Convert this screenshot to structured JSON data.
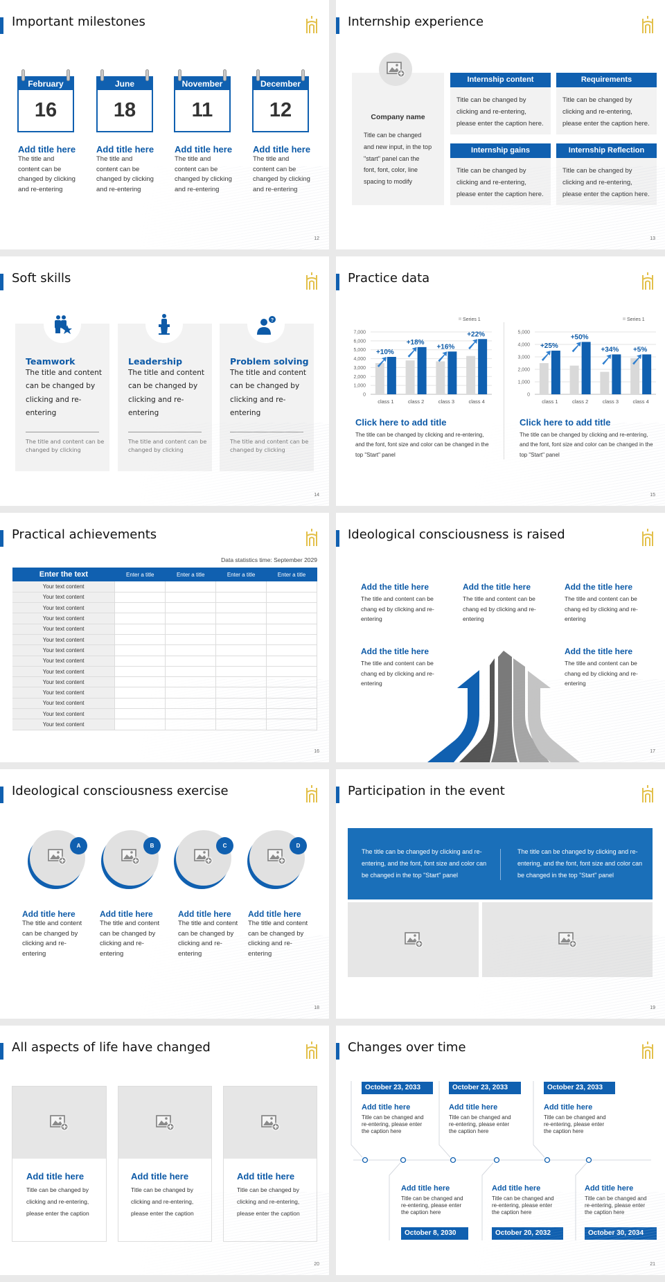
{
  "colors": {
    "accent": "#1060b0",
    "title_blue": "#0d5aa7",
    "panel_gray": "#f2f2f2",
    "logo_gold": "#e3c04a"
  },
  "slides": [
    {
      "page": "12",
      "title": "Important milestones",
      "calendars": [
        {
          "month": "February",
          "day": "16",
          "title": "Add title here",
          "body": "The title and content can be changed by clicking and re-entering"
        },
        {
          "month": "June",
          "day": "18",
          "title": "Add title here",
          "body": "The title and content can be changed by clicking and re-entering"
        },
        {
          "month": "November",
          "day": "11",
          "title": "Add title here",
          "body": "The title and content can be changed by clicking and re-entering"
        },
        {
          "month": "December",
          "day": "12",
          "title": "Add title here",
          "body": "The title and content can be changed by clicking and re-entering"
        }
      ]
    },
    {
      "page": "13",
      "title": "Internship experience",
      "company": "Company name",
      "company_body": "Title can be changed and new input, in the top \"start\" panel can the font, font, color, line spacing to modify",
      "boxes": [
        {
          "header": "Internship content",
          "body": "Title can be changed by clicking and re-entering, please enter the caption here."
        },
        {
          "header": "Requirements",
          "body": "Title can be changed by clicking and re-entering, please enter the caption here."
        },
        {
          "header": "Internship gains",
          "body": "Title can be changed by clicking and re-entering, please enter the caption here."
        },
        {
          "header": "Internship Reflection",
          "body": "Title can be changed by clicking and re-entering, please enter the caption here."
        }
      ]
    },
    {
      "page": "14",
      "title": "Soft skills",
      "cards": [
        {
          "icon": "team-star-icon",
          "title": "Teamwork",
          "body": "The title and content can be changed by clicking and re-entering",
          "note": "The title and content can be changed by clicking"
        },
        {
          "icon": "speaker-podium-icon",
          "title": "Leadership",
          "body": "The title and content can be changed by clicking and re-entering",
          "note": "The title and content can be changed by clicking"
        },
        {
          "icon": "user-question-icon",
          "title": "Problem solving",
          "body": "The title and content can be changed by clicking and re-entering",
          "note": "The title and content can be changed by clicking"
        }
      ]
    },
    {
      "page": "15",
      "title": "Practice data",
      "captions": [
        {
          "title": "Click here to add title",
          "body": "The title can be changed by clicking and re-entering, and the font, font size and color can be changed in the top \"Start\" panel"
        },
        {
          "title": "Click here to add title",
          "body": "The title can be changed by clicking and re-entering, and the font, font size and color can be changed in the top \"Start\" panel"
        }
      ]
    },
    {
      "page": "16",
      "title": "Practical achievements",
      "note": "Data statistics time: September 2029",
      "table": {
        "headers": [
          "Enter the text",
          "Enter a title",
          "Enter a title",
          "Enter a title",
          "Enter a title"
        ],
        "rows": [
          "Your text content",
          "Your text content",
          "Your text content",
          "Your text content",
          "Your text content",
          "Your text content",
          "Your text content",
          "Your text content",
          "Your text content",
          "Your text content",
          "Your text content",
          "Your text content",
          "Your text content",
          "Your text content"
        ]
      }
    },
    {
      "page": "17",
      "title": "Ideological consciousness is raised",
      "items": [
        {
          "title": "Add the title here",
          "body": "The title and content can be chang ed by clicking and re-entering"
        },
        {
          "title": "Add the title here",
          "body": "The title and content can be chang ed by clicking and re-entering"
        },
        {
          "title": "Add the title here",
          "body": "The title and content can be chang ed by clicking and re-entering"
        },
        {
          "title": "Add the title here",
          "body": "The title and content can be chang ed by clicking and re-entering"
        },
        {
          "title": "Add the title here",
          "body": "The title and content can be chang ed by clicking and re-entering"
        }
      ]
    },
    {
      "page": "18",
      "title": "Ideological consciousness exercise",
      "items": [
        {
          "letter": "A",
          "title": "Add title here",
          "body": "The title and content can be changed by clicking and re-entering"
        },
        {
          "letter": "B",
          "title": "Add title here",
          "body": "The title and content can be changed by clicking and re-entering"
        },
        {
          "letter": "C",
          "title": "Add title here",
          "body": "The title and content can be changed by clicking and re-entering"
        },
        {
          "letter": "D",
          "title": "Add title here",
          "body": "The title and content can be changed by clicking and re-entering"
        }
      ]
    },
    {
      "page": "19",
      "title": "Participation in the event",
      "texts": [
        "The title can be changed by clicking and re-entering, and the font, font size and color can be changed in the top \"Start\" panel",
        "The title can be changed by clicking and re-entering, and the font, font size and color can be changed in the top \"Start\" panel"
      ]
    },
    {
      "page": "20",
      "title": "All aspects of life have changed",
      "cards": [
        {
          "title": "Add title here",
          "body": "Title can be changed by clicking and re-entering, please enter the caption"
        },
        {
          "title": "Add title here",
          "body": "Title can be changed by clicking and re-entering, please enter the caption"
        },
        {
          "title": "Add title here",
          "body": "Title can be changed by clicking and re-entering, please enter the caption"
        }
      ]
    },
    {
      "page": "21",
      "title": "Changes over time",
      "top": [
        {
          "date": "October 23, 2033",
          "title": "Add title here",
          "body": "Title can be changed and re-entering, please enter the caption here"
        },
        {
          "date": "October 23, 2033",
          "title": "Add title here",
          "body": "Title can be changed and re-entering, please enter the caption here"
        },
        {
          "date": "October 23, 2033",
          "title": "Add title here",
          "body": "Title can be changed and re-entering, please enter the caption here"
        }
      ],
      "bottom": [
        {
          "date": "October 8, 2030",
          "title": "Add title here",
          "body": "Title can be changed and re-entering, please enter the caption here"
        },
        {
          "date": "October 20, 2032",
          "title": "Add title here",
          "body": "Title can be changed and re-entering, please enter the caption here"
        },
        {
          "date": "October 30, 2034",
          "title": "Add title here",
          "body": "Title can be changed and re-entering, please enter the caption here"
        }
      ]
    }
  ],
  "chart_data": [
    {
      "type": "bar",
      "categories": [
        "class 1",
        "class 2",
        "class 3",
        "class 4"
      ],
      "series": [
        {
          "name": "Series 1",
          "values": [
            3500,
            3800,
            3700,
            4300
          ],
          "color": "#d9d9d9"
        },
        {
          "values": [
            4200,
            5300,
            4800,
            6200
          ],
          "color": "#1060b0"
        }
      ],
      "annotations": [
        "+10%",
        "+18%",
        "+16%",
        "+22%"
      ],
      "ylim": [
        0,
        7000
      ],
      "yticks": [
        "0",
        "1,000",
        "2,000",
        "3,000",
        "4,000",
        "5,000",
        "6,000",
        "7,000"
      ],
      "grid": true,
      "legend": "top-right"
    },
    {
      "type": "bar",
      "categories": [
        "class 1",
        "class 2",
        "class 3",
        "class 4"
      ],
      "series": [
        {
          "name": "Series 1",
          "values": [
            2500,
            2300,
            1800,
            2900
          ],
          "color": "#d9d9d9"
        },
        {
          "values": [
            3500,
            4200,
            3200,
            3200
          ],
          "color": "#1060b0"
        }
      ],
      "annotations": [
        "+25%",
        "+50%",
        "+34%",
        "+5%"
      ],
      "ylim": [
        0,
        5000
      ],
      "yticks": [
        "0",
        "1,000",
        "2,000",
        "3,000",
        "4,000",
        "5,000"
      ],
      "grid": true,
      "legend": "top-right"
    }
  ]
}
